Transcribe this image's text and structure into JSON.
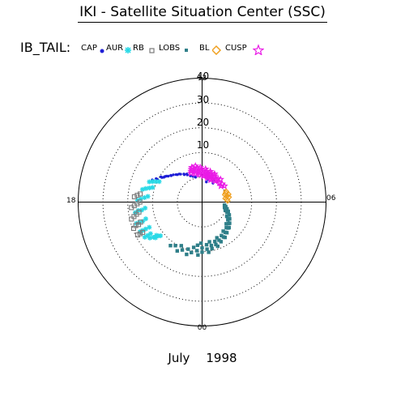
{
  "header": {
    "title": "IKI - Satellite Situation Center (SSC)"
  },
  "region_label": "IB_TAIL:",
  "legend": [
    {
      "label": "CAP",
      "color": "#1f1fd6",
      "marker": "dot"
    },
    {
      "label": "AUR",
      "color": "#2ad9e6",
      "marker": "asterisk"
    },
    {
      "label": "RB",
      "color": "#7a7a7a",
      "marker": "open-square"
    },
    {
      "label": "LOBS",
      "color": "#2f7f89",
      "marker": "filled-square"
    },
    {
      "label": "BL",
      "color": "#f0a020",
      "marker": "diamond"
    },
    {
      "label": "CUSP",
      "color": "#ea1ae6",
      "marker": "star"
    }
  ],
  "footer": {
    "month": "July",
    "year": "1998"
  },
  "chart_data": {
    "type": "polar-scatter",
    "title": "IKI - Satellite Situation Center (SSC)",
    "angular_axis": {
      "unit": "MLT hours",
      "tick_labels": [
        "12",
        "18",
        "00",
        "06"
      ],
      "orientation": "12 at top, 18 at left, 00 at bottom, 06 at right"
    },
    "radial_axis": {
      "tick_labels": [
        "10",
        "20",
        "30",
        "40"
      ],
      "ticks": [
        10,
        20,
        30,
        40
      ],
      "max": 50,
      "grid": "dotted circles"
    },
    "series": [
      {
        "name": "CAP",
        "color": "#1f1fd6",
        "marker": "dot",
        "points": [
          [
            13.9,
            12.9
          ],
          [
            14.6,
            14.6
          ],
          [
            15.3,
            16.4
          ],
          [
            15.8,
            18.4
          ],
          [
            16.2,
            20.3
          ],
          [
            16.4,
            22.0
          ],
          [
            13.6,
            11.8
          ],
          [
            14.2,
            13.5
          ],
          [
            14.9,
            15.3
          ],
          [
            15.5,
            17.2
          ],
          [
            15.9,
            19.0
          ],
          [
            16.2,
            20.8
          ],
          [
            13.3,
            11.0
          ],
          [
            13.9,
            12.5
          ],
          [
            14.5,
            14.2
          ],
          [
            15.1,
            16.0
          ],
          [
            15.6,
            17.8
          ],
          [
            15.9,
            19.5
          ],
          [
            13.0,
            10.4
          ],
          [
            13.6,
            11.6
          ],
          [
            14.2,
            13.2
          ],
          [
            14.8,
            14.9
          ],
          [
            15.3,
            16.6
          ],
          [
            15.7,
            18.2
          ],
          [
            11.2,
            8.3
          ],
          [
            11.0,
            9.4
          ],
          [
            10.8,
            10.2
          ],
          [
            10.6,
            10.6
          ],
          [
            10.2,
            9.9
          ],
          [
            10.0,
            8.8
          ]
        ]
      },
      {
        "name": "AUR",
        "color": "#2ad9e6",
        "marker": "asterisk",
        "points": [
          [
            16.6,
            22.8
          ],
          [
            17.2,
            24.6
          ],
          [
            17.9,
            26.1
          ],
          [
            18.6,
            27.3
          ],
          [
            19.2,
            27.9
          ],
          [
            19.7,
            27.8
          ],
          [
            20.1,
            27.1
          ],
          [
            20.3,
            25.6
          ],
          [
            20.5,
            23.7
          ],
          [
            20.6,
            21.6
          ],
          [
            16.5,
            21.6
          ],
          [
            17.1,
            23.4
          ],
          [
            17.8,
            24.8
          ],
          [
            18.5,
            26.0
          ],
          [
            19.2,
            26.7
          ],
          [
            19.7,
            26.6
          ],
          [
            20.1,
            25.8
          ],
          [
            20.4,
            24.2
          ],
          [
            20.5,
            22.4
          ],
          [
            16.4,
            20.4
          ],
          [
            17.0,
            22.0
          ],
          [
            17.7,
            23.3
          ],
          [
            18.5,
            24.5
          ],
          [
            19.2,
            25.2
          ],
          [
            19.7,
            25.2
          ],
          [
            20.1,
            24.4
          ],
          [
            20.4,
            22.8
          ],
          [
            16.3,
            19.2
          ],
          [
            16.9,
            20.8
          ],
          [
            17.6,
            22.0
          ],
          [
            18.4,
            23.1
          ],
          [
            19.1,
            23.7
          ],
          [
            19.7,
            23.6
          ]
        ]
      },
      {
        "name": "RB",
        "color": "#7a7a7a",
        "marker": "open-square",
        "points": [
          [
            17.7,
            27.4
          ],
          [
            18.3,
            28.6
          ],
          [
            18.9,
            29.3
          ],
          [
            19.4,
            29.6
          ],
          [
            19.8,
            29.2
          ],
          [
            17.6,
            26.3
          ],
          [
            18.2,
            27.4
          ],
          [
            18.8,
            28.1
          ],
          [
            19.3,
            28.4
          ],
          [
            19.8,
            28.1
          ],
          [
            17.5,
            25.2
          ],
          [
            18.1,
            26.2
          ],
          [
            18.7,
            26.9
          ],
          [
            19.3,
            27.2
          ],
          [
            19.8,
            26.9
          ],
          [
            18.0,
            25.1
          ],
          [
            18.6,
            25.8
          ],
          [
            19.2,
            26.1
          ]
        ]
      },
      {
        "name": "LOBS",
        "color": "#2f7f89",
        "marker": "filled-square",
        "points": [
          [
            4.6,
            11.2
          ],
          [
            3.9,
            13.0
          ],
          [
            3.1,
            15.0
          ],
          [
            2.2,
            17.0
          ],
          [
            1.3,
            18.9
          ],
          [
            0.5,
            20.4
          ],
          [
            23.7,
            21.4
          ],
          [
            22.9,
            22.0
          ],
          [
            22.2,
            22.1
          ],
          [
            21.6,
            21.7
          ],
          [
            5.0,
            10.4
          ],
          [
            4.3,
            12.1
          ],
          [
            3.5,
            14.0
          ],
          [
            2.6,
            15.9
          ],
          [
            1.7,
            17.7
          ],
          [
            0.8,
            19.2
          ],
          [
            0.0,
            20.2
          ],
          [
            23.2,
            20.8
          ],
          [
            22.5,
            20.9
          ],
          [
            21.9,
            20.6
          ],
          [
            5.3,
            9.7
          ],
          [
            4.7,
            11.2
          ],
          [
            3.9,
            13.0
          ],
          [
            3.0,
            14.8
          ],
          [
            2.1,
            16.5
          ],
          [
            1.2,
            18.0
          ],
          [
            0.4,
            19.1
          ],
          [
            23.6,
            19.7
          ],
          [
            22.9,
            19.8
          ],
          [
            22.3,
            19.5
          ],
          [
            5.5,
            9.1
          ],
          [
            5.0,
            10.4
          ],
          [
            4.3,
            12.1
          ],
          [
            3.4,
            13.8
          ],
          [
            2.5,
            15.4
          ],
          [
            1.6,
            16.8
          ],
          [
            0.8,
            17.9
          ],
          [
            0.0,
            18.5
          ],
          [
            23.3,
            18.6
          ],
          [
            5.1,
            9.3
          ],
          [
            4.5,
            10.9
          ],
          [
            3.7,
            12.6
          ],
          [
            2.9,
            14.2
          ],
          [
            2.0,
            15.6
          ],
          [
            1.2,
            16.7
          ],
          [
            0.4,
            17.3
          ],
          [
            23.6,
            17.5
          ],
          [
            4.7,
            9.9
          ],
          [
            4.0,
            11.5
          ],
          [
            3.2,
            13.1
          ],
          [
            2.4,
            14.5
          ],
          [
            1.5,
            15.6
          ],
          [
            0.7,
            16.3
          ],
          [
            23.9,
            16.6
          ]
        ]
      },
      {
        "name": "BL",
        "color": "#f0a020",
        "marker": "diamond",
        "points": [
          [
            7.6,
            10.6
          ],
          [
            7.1,
            11.1
          ],
          [
            6.7,
            11.0
          ],
          [
            6.2,
            10.3
          ],
          [
            7.4,
            10.2
          ],
          [
            6.9,
            10.4
          ],
          [
            6.4,
            10.0
          ],
          [
            7.2,
            9.7
          ],
          [
            6.6,
            9.5
          ]
        ]
      },
      {
        "name": "CUSP",
        "color": "#ea1ae6",
        "marker": "star",
        "points": [
          [
            9.7,
            11.4
          ],
          [
            10.3,
            11.7
          ],
          [
            10.9,
            12.1
          ],
          [
            11.5,
            12.6
          ],
          [
            12.1,
            13.2
          ],
          [
            12.6,
            13.9
          ],
          [
            13.1,
            14.6
          ],
          [
            9.8,
            10.7
          ],
          [
            10.4,
            11.0
          ],
          [
            11.0,
            11.4
          ],
          [
            11.6,
            11.9
          ],
          [
            12.2,
            12.5
          ],
          [
            12.7,
            13.2
          ],
          [
            13.2,
            13.9
          ],
          [
            9.9,
            10.0
          ],
          [
            10.5,
            10.3
          ],
          [
            11.1,
            10.7
          ],
          [
            11.7,
            11.2
          ],
          [
            12.3,
            11.8
          ],
          [
            12.8,
            12.5
          ],
          [
            13.3,
            13.2
          ],
          [
            10.6,
            9.6
          ],
          [
            11.2,
            10.0
          ],
          [
            11.8,
            10.5
          ],
          [
            12.4,
            11.1
          ],
          [
            12.9,
            11.8
          ],
          [
            13.4,
            12.5
          ],
          [
            10.4,
            12.4
          ],
          [
            11.0,
            12.8
          ],
          [
            11.6,
            13.4
          ],
          [
            12.2,
            14.0
          ],
          [
            12.7,
            14.8
          ],
          [
            8.8,
            10.9
          ],
          [
            8.4,
            11.1
          ],
          [
            9.2,
            10.4
          ],
          [
            8.7,
            10.0
          ],
          [
            9.4,
            11.8
          ]
        ]
      }
    ]
  }
}
